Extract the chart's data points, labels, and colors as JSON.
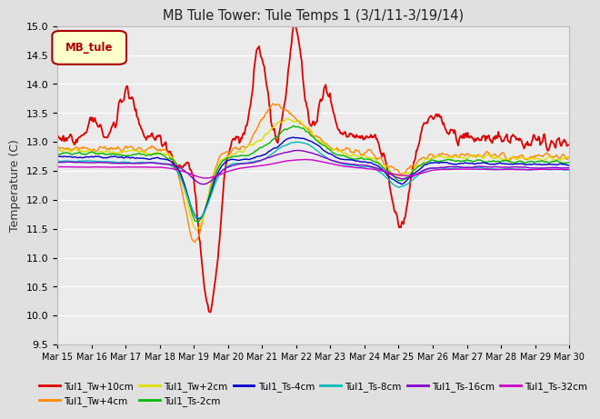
{
  "title": "MB Tule Tower: Tule Temps 1 (3/1/11-3/19/14)",
  "ylabel": "Temperature (C)",
  "ylim": [
    9.5,
    15.0
  ],
  "yticks": [
    9.5,
    10.0,
    10.5,
    11.0,
    11.5,
    12.0,
    12.5,
    13.0,
    13.5,
    14.0,
    14.5,
    15.0
  ],
  "bg_color": "#e0e0e0",
  "plot_bg": "#ebebeb",
  "grid_color": "#ffffff",
  "series": [
    {
      "label": "Tul1_Tw+10cm",
      "color": "#dd0000",
      "lw": 1.3
    },
    {
      "label": "Tul1_Tw+4cm",
      "color": "#ff8800",
      "lw": 1.0
    },
    {
      "label": "Tul1_Tw+2cm",
      "color": "#dddd00",
      "lw": 1.0
    },
    {
      "label": "Tul1_Ts-2cm",
      "color": "#00bb00",
      "lw": 1.0
    },
    {
      "label": "Tul1_Ts-4cm",
      "color": "#0000cc",
      "lw": 1.0
    },
    {
      "label": "Tul1_Ts-8cm",
      "color": "#00bbbb",
      "lw": 1.0
    },
    {
      "label": "Tul1_Ts-16cm",
      "color": "#8800cc",
      "lw": 1.0
    },
    {
      "label": "Tul1_Ts-32cm",
      "color": "#cc00cc",
      "lw": 1.0
    }
  ],
  "xtick_labels": [
    "Mar 15",
    "Mar 16",
    "Mar 17",
    "Mar 18",
    "Mar 19",
    "Mar 20",
    "Mar 21",
    "Mar 22",
    "Mar 23",
    "Mar 24",
    "Mar 25",
    "Mar 26",
    "Mar 27",
    "Mar 28",
    "Mar 29",
    "Mar 30"
  ],
  "legend_box": {
    "label": "MB_tule",
    "facecolor": "#ffffcc",
    "edgecolor": "#aa0000",
    "textcolor": "#aa0000"
  }
}
